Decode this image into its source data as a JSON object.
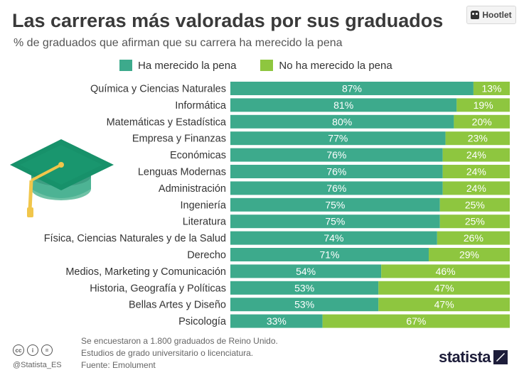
{
  "header": {
    "title": "Las carreras más valoradas por sus graduados",
    "subtitle": "% de graduados que afirman que su carrera ha merecido la pena",
    "hootlet_label": "Hootlet"
  },
  "colors": {
    "yes": "#3daa8c",
    "no": "#8ec63f",
    "label": "#333333",
    "bar_text": "#ffffff"
  },
  "chart_data": {
    "type": "bar",
    "orientation": "horizontal",
    "stacked": true,
    "title": "Las carreras más valoradas por sus graduados",
    "subtitle": "% de graduados que afirman que su carrera ha merecido la pena",
    "xlim": [
      0,
      100
    ],
    "unit": "%",
    "legend_position": "top",
    "categories": [
      "Química y Ciencias Naturales",
      "Informática",
      "Matemáticas y Estadística",
      "Empresa y Finanzas",
      "Económicas",
      "Lenguas Modernas",
      "Administración",
      "Ingeniería",
      "Literatura",
      "Física, Ciencias Naturales y de la Salud",
      "Derecho",
      "Medios, Marketing y Comunicación",
      "Historia, Geografía y Políticas",
      "Bellas Artes y Diseño",
      "Psicología"
    ],
    "series": [
      {
        "name": "Ha merecido la pena",
        "values": [
          87,
          81,
          80,
          77,
          76,
          76,
          76,
          75,
          75,
          74,
          71,
          54,
          53,
          53,
          33
        ]
      },
      {
        "name": "No ha merecido la pena",
        "values": [
          13,
          19,
          20,
          23,
          24,
          24,
          24,
          25,
          25,
          26,
          29,
          46,
          47,
          47,
          67
        ]
      }
    ]
  },
  "footer": {
    "notes": [
      "Se encuestaron a 1.800 graduados de Reino Unido.",
      "Estudios de grado universitario o licenciatura."
    ],
    "source": "Fuente: Emolument",
    "handle": "@Statista_ES",
    "brand": "statista",
    "cc_badges": [
      "cc",
      "i",
      "="
    ]
  }
}
